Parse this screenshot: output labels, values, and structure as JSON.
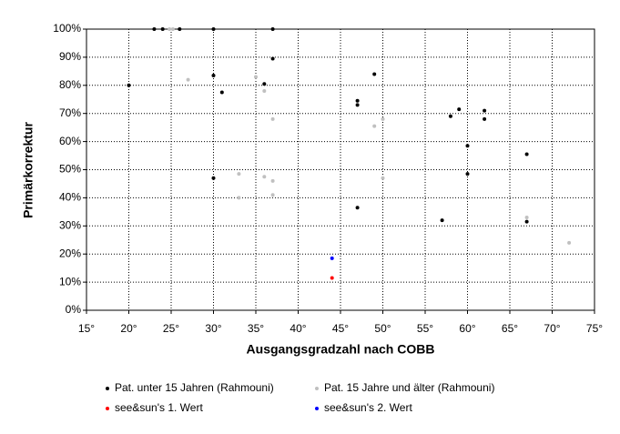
{
  "chart_data": {
    "type": "scatter",
    "x_label": "Ausgangsgradzahl nach COBB",
    "y_label": "Primärkorrektur",
    "xlim": [
      15,
      75
    ],
    "xticks": [
      {
        "value": 15,
        "label": "15°"
      },
      {
        "value": 20,
        "label": "20°"
      },
      {
        "value": 25,
        "label": "25°"
      },
      {
        "value": 30,
        "label": "30°"
      },
      {
        "value": 35,
        "label": "35°"
      },
      {
        "value": 40,
        "label": "40°"
      },
      {
        "value": 45,
        "label": "45°"
      },
      {
        "value": 50,
        "label": "50°"
      },
      {
        "value": 55,
        "label": "55°"
      },
      {
        "value": 60,
        "label": "60°"
      },
      {
        "value": 65,
        "label": "65°"
      },
      {
        "value": 70,
        "label": "70°"
      },
      {
        "value": 75,
        "label": "75°"
      }
    ],
    "ylim": [
      0,
      100
    ],
    "yticks": [
      {
        "value": 0,
        "label": "0%"
      },
      {
        "value": 10,
        "label": "10%"
      },
      {
        "value": 20,
        "label": "20%"
      },
      {
        "value": 30,
        "label": "30%"
      },
      {
        "value": 40,
        "label": "40%"
      },
      {
        "value": 50,
        "label": "50%"
      },
      {
        "value": 60,
        "label": "60%"
      },
      {
        "value": 70,
        "label": "70%"
      },
      {
        "value": 80,
        "label": "80%"
      },
      {
        "value": 90,
        "label": "90%"
      },
      {
        "value": 100,
        "label": "100%"
      }
    ],
    "grid": true,
    "series": [
      {
        "name": "Pat. unter 15 Jahren (Rahmouni)",
        "color": "#000000",
        "x": [
          20,
          23,
          24,
          26,
          30,
          37,
          37,
          30,
          31,
          36,
          30,
          49,
          47,
          47,
          47,
          57,
          58,
          59,
          62,
          62,
          60,
          60,
          67,
          67
        ],
        "values": [
          80,
          100,
          100,
          100,
          100,
          100,
          89.5,
          83.5,
          77.5,
          80.5,
          47,
          84,
          74.5,
          73,
          36.5,
          32,
          69,
          71.5,
          71,
          68,
          58.5,
          48.5,
          55.5,
          31.5
        ]
      },
      {
        "name": "Pat. 15 Jahre und älter (Rahmouni)",
        "color": "#c0c0c0",
        "x": [
          24.8,
          25.2,
          27,
          33,
          33,
          35,
          36,
          36,
          37,
          37,
          37,
          49,
          50,
          50,
          67,
          72
        ],
        "values": [
          100,
          100,
          82,
          48.5,
          40,
          83,
          78,
          47.5,
          68,
          46,
          41,
          65.5,
          68,
          47,
          33,
          24
        ]
      },
      {
        "name": "see&sun's 1. Wert",
        "color": "#ff0000",
        "x": [
          44
        ],
        "values": [
          11.5
        ]
      },
      {
        "name": "see&sun's 2. Wert",
        "color": "#0000ff",
        "x": [
          44
        ],
        "values": [
          18.5
        ]
      }
    ]
  }
}
